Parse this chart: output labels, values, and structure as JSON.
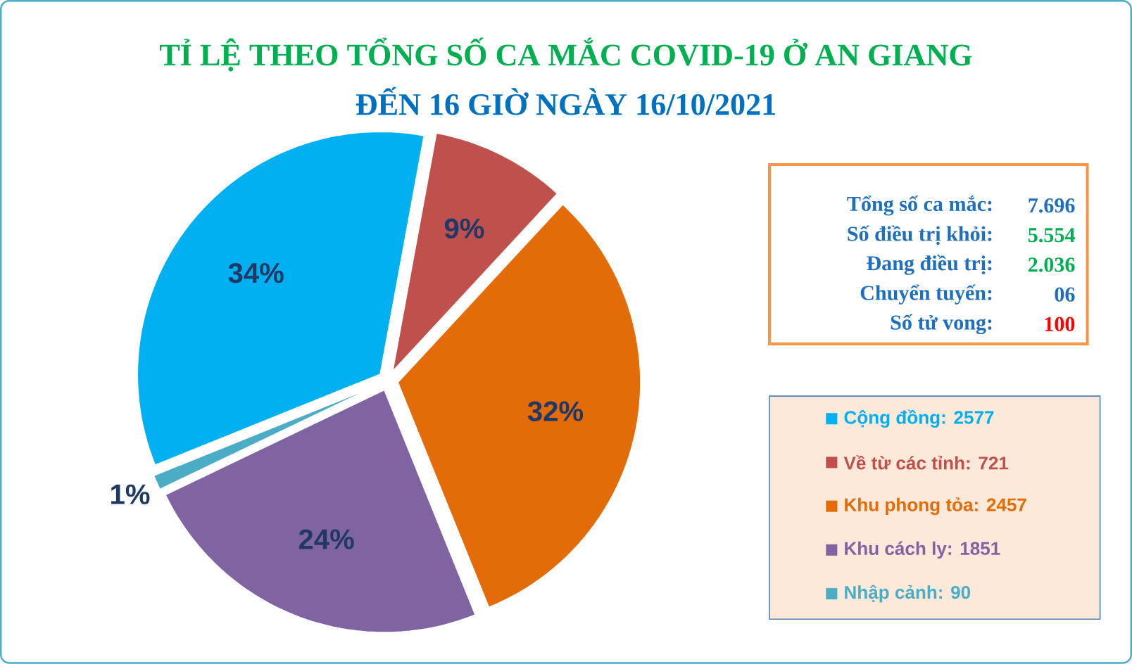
{
  "chart_data": {
    "type": "pie",
    "title": "TỈ LỆ THEO TỔNG SỐ CA MẮC COVID-19 Ở AN GIANG",
    "subtitle": "ĐẾN 16 GIỜ NGÀY 16/10/2021",
    "categories": [
      "Cộng đồng: 2577",
      "Về từ các tỉnh: 721",
      "Khu phong tỏa: 2457",
      "Khu cách ly: 1851",
      "Nhập cảnh: 90"
    ],
    "values": [
      34,
      9,
      32,
      24,
      1
    ],
    "colors": [
      "#00b0f0",
      "#c0504d",
      "#e36c09",
      "#8064a2",
      "#4bacc6"
    ],
    "value_labels": [
      "34%",
      "9%",
      "32%",
      "24%",
      "1%"
    ],
    "legend": "right",
    "annotations": [
      "Tổng số ca mắc:",
      "7.696",
      "Số điều trị khỏi:",
      "5.554",
      "Đang điều trị:",
      "2.036",
      "Chuyển tuyến:",
      "06",
      "Số tử vong:",
      "100"
    ]
  }
}
